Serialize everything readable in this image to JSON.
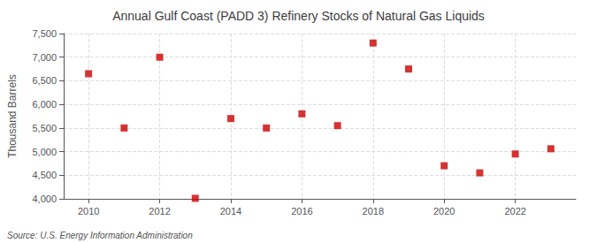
{
  "chart_data": {
    "type": "scatter",
    "title": "Annual Gulf Coast (PADD 3) Refinery Stocks of Natural Gas Liquids",
    "ylabel": "Thousand Barrels",
    "annotation": "Source: U.S. Energy Information Administration",
    "x": [
      2010,
      2011,
      2012,
      2013,
      2014,
      2015,
      2016,
      2017,
      2018,
      2019,
      2020,
      2021,
      2022,
      2023
    ],
    "values": [
      6650,
      5500,
      7000,
      4010,
      5700,
      5500,
      5800,
      5550,
      7300,
      6750,
      4700,
      4550,
      4950,
      5060
    ],
    "color": "#cc0000",
    "marker": "square",
    "xlim": [
      2009.3,
      2023.7
    ],
    "xticks": [
      2010,
      2012,
      2014,
      2016,
      2018,
      2020,
      2022
    ],
    "ylim": [
      4000,
      7500
    ],
    "yticks": [
      {
        "value": 4000,
        "label": "4,000"
      },
      {
        "value": 4500,
        "label": "4,500"
      },
      {
        "value": 5000,
        "label": "5,000"
      },
      {
        "value": 5500,
        "label": "5,500"
      },
      {
        "value": 6000,
        "label": "6,000"
      },
      {
        "value": 6500,
        "label": "6,500"
      },
      {
        "value": 7000,
        "label": "7,000"
      },
      {
        "value": 7500,
        "label": "7,500"
      }
    ],
    "grid": true
  }
}
